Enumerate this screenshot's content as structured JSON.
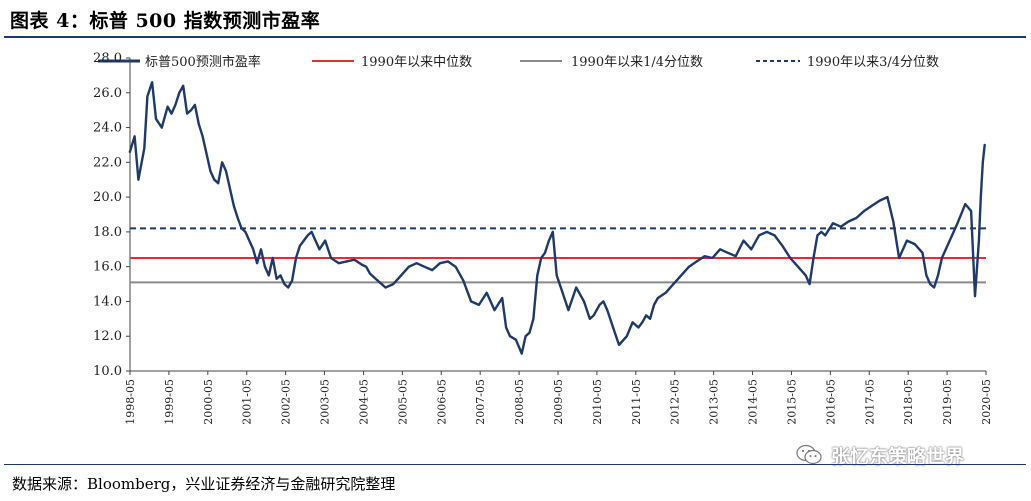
{
  "header": {
    "title": "图表 4：标普 500 指数预测市盈率"
  },
  "footer": {
    "source": "数据来源：Bloomberg，兴业证券经济与金融研究院整理"
  },
  "watermark": {
    "text": "张忆东策略世界",
    "icon": "wechat-icon"
  },
  "colors": {
    "series": "#1f3a68",
    "median": "#e03030",
    "quartile1": "#8a8a8a",
    "quartile3": "#1f3a68",
    "title_rule": "#1f3a68"
  },
  "chart_data": {
    "type": "line",
    "title": "标普 500 指数预测市盈率",
    "xlabel": "",
    "ylabel": "",
    "ylim": [
      10.0,
      28.0
    ],
    "yticks": [
      "10.0",
      "12.0",
      "14.0",
      "16.0",
      "18.0",
      "20.0",
      "22.0",
      "24.0",
      "26.0",
      "28.0"
    ],
    "xlim": [
      1998.333,
      2020.333
    ],
    "xticks": [
      "1998-05",
      "1999-05",
      "2000-05",
      "2001-05",
      "2002-05",
      "2003-05",
      "2004-05",
      "2005-05",
      "2006-05",
      "2007-05",
      "2008-05",
      "2009-05",
      "2010-05",
      "2011-05",
      "2012-05",
      "2013-05",
      "2014-05",
      "2015-05",
      "2016-05",
      "2017-05",
      "2018-05",
      "2019-05",
      "2020-05"
    ],
    "legend": [
      {
        "label": "标普500预测市盈率",
        "style": "solid",
        "color": "#1f3a68"
      },
      {
        "label": "1990年以来中位数",
        "style": "solid",
        "color": "#e03030"
      },
      {
        "label": "1990年以来1/4分位数",
        "style": "solid",
        "color": "#8a8a8a"
      },
      {
        "label": "1990年以来3/4分位数",
        "style": "dashed",
        "color": "#1f3a68"
      }
    ],
    "reference_lines": {
      "median": 16.5,
      "q1": 15.1,
      "q3": 18.2
    },
    "series": [
      {
        "name": "标普500预测市盈率",
        "x": [
          1998.33,
          1998.45,
          1998.55,
          1998.7,
          1998.78,
          1998.9,
          1999.0,
          1999.15,
          1999.3,
          1999.4,
          1999.5,
          1999.6,
          1999.7,
          1999.8,
          1999.9,
          2000.0,
          2000.1,
          2000.2,
          2000.3,
          2000.4,
          2000.5,
          2000.6,
          2000.7,
          2000.8,
          2000.9,
          2001.0,
          2001.1,
          2001.2,
          2001.3,
          2001.4,
          2001.5,
          2001.6,
          2001.7,
          2001.8,
          2001.9,
          2002.0,
          2002.1,
          2002.2,
          2002.3,
          2002.4,
          2002.5,
          2002.6,
          2002.7,
          2002.8,
          2002.9,
          2003.0,
          2003.1,
          2003.2,
          2003.35,
          2003.5,
          2003.7,
          2003.9,
          2004.1,
          2004.3,
          2004.4,
          2004.5,
          2004.7,
          2004.9,
          2005.1,
          2005.3,
          2005.5,
          2005.7,
          2005.9,
          2006.1,
          2006.3,
          2006.5,
          2006.7,
          2006.9,
          2007.1,
          2007.3,
          2007.5,
          2007.7,
          2007.9,
          2008.0,
          2008.1,
          2008.25,
          2008.4,
          2008.5,
          2008.6,
          2008.7,
          2008.8,
          2008.9,
          2009.0,
          2009.1,
          2009.2,
          2009.3,
          2009.45,
          2009.6,
          2009.8,
          2010.0,
          2010.15,
          2010.25,
          2010.4,
          2010.5,
          2010.6,
          2010.75,
          2010.9,
          2011.1,
          2011.25,
          2011.4,
          2011.5,
          2011.6,
          2011.7,
          2011.8,
          2011.9,
          2012.1,
          2012.3,
          2012.5,
          2012.7,
          2012.9,
          2013.1,
          2013.3,
          2013.5,
          2013.7,
          2013.9,
          2014.1,
          2014.3,
          2014.5,
          2014.7,
          2014.9,
          2015.1,
          2015.3,
          2015.5,
          2015.7,
          2015.8,
          2015.9,
          2016.0,
          2016.1,
          2016.2,
          2016.4,
          2016.6,
          2016.8,
          2017.0,
          2017.2,
          2017.4,
          2017.6,
          2017.8,
          2017.95,
          2018.1,
          2018.2,
          2018.3,
          2018.5,
          2018.7,
          2018.8,
          2018.9,
          2019.0,
          2019.1,
          2019.2,
          2019.4,
          2019.6,
          2019.8,
          2019.95,
          2020.05,
          2020.15,
          2020.2,
          2020.25,
          2020.3
        ],
        "values": [
          22.6,
          23.5,
          21.0,
          22.8,
          25.8,
          26.6,
          24.5,
          24.0,
          25.2,
          24.8,
          25.3,
          26.0,
          26.4,
          24.8,
          25.0,
          25.3,
          24.2,
          23.5,
          22.5,
          21.5,
          21.0,
          20.8,
          22.0,
          21.5,
          20.5,
          19.5,
          18.8,
          18.2,
          18.0,
          17.5,
          17.0,
          16.2,
          17.0,
          16.0,
          15.5,
          16.5,
          15.3,
          15.5,
          15.0,
          14.8,
          15.2,
          16.5,
          17.2,
          17.5,
          17.8,
          18.0,
          17.5,
          17.0,
          17.5,
          16.5,
          16.2,
          16.3,
          16.4,
          16.1,
          16.0,
          15.6,
          15.2,
          14.8,
          15.0,
          15.5,
          16.0,
          16.2,
          16.0,
          15.8,
          16.2,
          16.3,
          16.0,
          15.2,
          14.0,
          13.8,
          14.5,
          13.5,
          14.2,
          12.5,
          12.0,
          11.8,
          11.0,
          12.0,
          12.2,
          13.0,
          15.5,
          16.5,
          16.8,
          17.5,
          18.0,
          15.5,
          14.5,
          13.5,
          14.8,
          14.0,
          13.0,
          13.2,
          13.8,
          14.0,
          13.5,
          12.5,
          11.5,
          12.0,
          12.8,
          12.5,
          12.8,
          13.2,
          13.0,
          13.8,
          14.2,
          14.5,
          15.0,
          15.5,
          16.0,
          16.3,
          16.6,
          16.5,
          17.0,
          16.8,
          16.6,
          17.5,
          17.0,
          17.8,
          18.0,
          17.8,
          17.2,
          16.5,
          16.0,
          15.5,
          15.0,
          16.5,
          17.8,
          18.0,
          17.8,
          18.5,
          18.3,
          18.6,
          18.8,
          19.2,
          19.5,
          19.8,
          20.0,
          18.6,
          16.5,
          17.0,
          17.5,
          17.3,
          16.8,
          15.5,
          15.0,
          14.8,
          15.5,
          16.5,
          17.5,
          18.5,
          19.6,
          19.2,
          14.3,
          17.5,
          20.0,
          22.0,
          23.0
        ]
      }
    ]
  }
}
